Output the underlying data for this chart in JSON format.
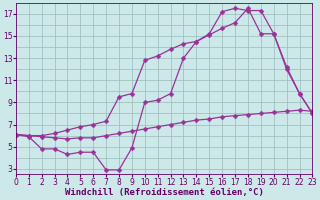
{
  "xlabel": "Windchill (Refroidissement éolien,°C)",
  "bg_color": "#cce8e8",
  "grid_color": "#99bbbb",
  "line_color": "#993399",
  "x_ticks": [
    0,
    1,
    2,
    3,
    4,
    5,
    6,
    7,
    8,
    9,
    10,
    11,
    12,
    13,
    14,
    15,
    16,
    17,
    18,
    19,
    20,
    21,
    22,
    23
  ],
  "y_ticks": [
    3,
    5,
    7,
    9,
    11,
    13,
    15,
    17
  ],
  "xlim": [
    0,
    23
  ],
  "ylim": [
    2.5,
    18.0
  ],
  "line1_x": [
    0,
    1,
    2,
    3,
    4,
    5,
    6,
    7,
    8,
    9,
    10,
    11,
    12,
    13,
    14,
    15,
    16,
    17,
    18,
    19,
    20,
    21,
    22,
    23
  ],
  "line1_y": [
    6.1,
    5.9,
    4.8,
    4.8,
    4.3,
    4.5,
    4.5,
    2.9,
    2.9,
    4.9,
    9.0,
    9.2,
    9.8,
    13.0,
    14.5,
    15.2,
    17.2,
    17.5,
    17.3,
    17.3,
    15.2,
    12.0,
    9.8,
    8.0
  ],
  "line2_x": [
    0,
    1,
    2,
    3,
    4,
    5,
    6,
    7,
    8,
    9,
    10,
    11,
    12,
    13,
    14,
    15,
    16,
    17,
    18,
    19,
    20,
    21,
    22,
    23
  ],
  "line2_y": [
    6.1,
    6.0,
    6.0,
    6.2,
    6.5,
    6.8,
    7.0,
    7.3,
    9.5,
    9.8,
    12.8,
    13.2,
    13.8,
    14.3,
    14.5,
    15.1,
    15.7,
    16.2,
    17.5,
    15.2,
    15.2,
    12.2,
    9.8,
    8.0
  ],
  "line3_x": [
    0,
    1,
    2,
    3,
    4,
    5,
    6,
    7,
    8,
    9,
    10,
    11,
    12,
    13,
    14,
    15,
    16,
    17,
    18,
    19,
    20,
    21,
    22,
    23
  ],
  "line3_y": [
    6.1,
    6.0,
    5.9,
    5.8,
    5.7,
    5.8,
    5.8,
    6.0,
    6.2,
    6.4,
    6.6,
    6.8,
    7.0,
    7.2,
    7.4,
    7.5,
    7.7,
    7.8,
    7.9,
    8.0,
    8.1,
    8.2,
    8.3,
    8.2
  ],
  "marker": "D",
  "marker_size": 2.5,
  "linewidth": 0.9,
  "xlabel_fontsize": 6.5,
  "tick_fontsize": 5.5,
  "xlabel_color": "#660066",
  "tick_color": "#660066"
}
